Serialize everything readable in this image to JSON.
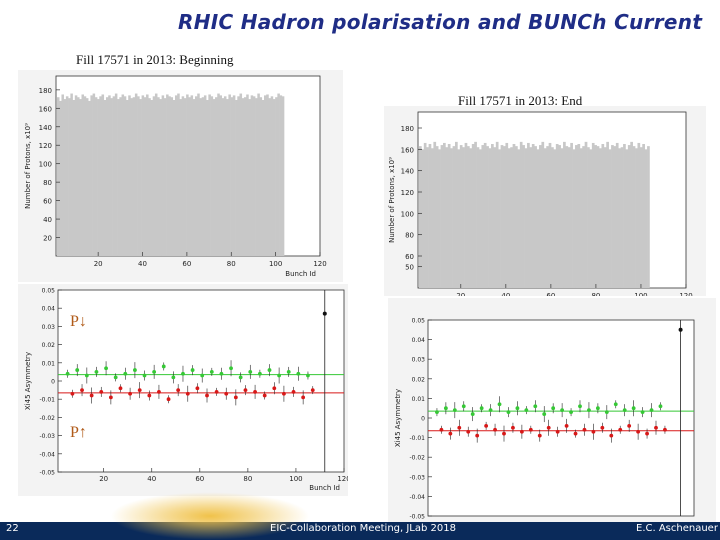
{
  "slide": {
    "title": "RHIC Hadron polarisation and BUNCh Current",
    "page_number": "22",
    "footer_center": "EIC-Collaboration Meeting, JLab 2018",
    "footer_right": "E.C. Aschenauer"
  },
  "captions": {
    "top_left": "Fill 17571 in 2013: Beginning",
    "top_right": "Fill 17571 in 2013: End"
  },
  "labels": {
    "p_down": "P↓",
    "p_up": "P↑"
  },
  "colors": {
    "title": "#1f2d86",
    "hist_fill": "#c8c8c8",
    "green_series": "#35c835",
    "red_series": "#d81818",
    "footer_bg": "#0a2a5a"
  },
  "chart_data": [
    {
      "type": "bar",
      "ylabel": "Number of Protons, x10⁹",
      "xlabel": "Bunch Id",
      "xticks": [
        "20",
        "40",
        "60",
        "80",
        "100",
        "120"
      ],
      "yticks": [
        "20",
        "40",
        "60",
        "80",
        "100",
        "120",
        "140",
        "160",
        "180"
      ],
      "xlim": [
        1,
        120
      ],
      "ylim": [
        0,
        195
      ],
      "values": [
        172,
        168,
        175,
        170,
        173,
        171,
        176,
        169,
        174,
        172,
        170,
        175,
        173,
        171,
        168,
        174,
        176,
        172,
        170,
        173,
        175,
        169,
        172,
        174,
        171,
        173,
        176,
        170,
        172,
        175,
        173,
        169,
        174,
        171,
        172,
        176,
        173,
        170,
        174,
        172,
        175,
        171,
        169,
        173,
        176,
        172,
        170,
        174,
        171,
        175,
        173,
        172,
        169,
        174,
        176,
        170,
        173,
        171,
        175,
        172,
        174,
        170,
        173,
        176,
        171,
        172,
        174,
        169,
        175,
        173,
        170,
        172,
        176,
        174,
        171,
        173,
        170,
        175,
        172,
        174,
        169,
        173,
        176,
        171,
        172,
        175,
        170,
        174,
        173,
        171,
        176,
        172,
        169,
        174,
        175,
        171,
        173,
        170,
        172,
        176,
        174,
        173
      ]
    },
    {
      "type": "bar",
      "ylabel": "Number of Protons, x10⁹",
      "xlabel": "Bunch Id",
      "xticks": [
        "20",
        "40",
        "60",
        "80",
        "100",
        "120"
      ],
      "yticks": [
        "50",
        "60",
        "80",
        "100",
        "120",
        "140",
        "160",
        "180"
      ],
      "xlim": [
        1,
        120
      ],
      "ylim": [
        30,
        195
      ],
      "values": [
        163,
        160,
        166,
        162,
        165,
        161,
        167,
        163,
        160,
        164,
        166,
        162,
        165,
        161,
        163,
        167,
        160,
        164,
        162,
        166,
        163,
        161,
        165,
        167,
        162,
        160,
        164,
        166,
        163,
        161,
        165,
        162,
        167,
        160,
        164,
        163,
        166,
        161,
        162,
        165,
        163,
        160,
        167,
        164,
        161,
        166,
        162,
        165,
        163,
        160,
        164,
        167,
        161,
        163,
        166,
        162,
        160,
        165,
        164,
        161,
        167,
        163,
        162,
        166,
        160,
        164,
        165,
        161,
        163,
        167,
        162,
        160,
        166,
        164,
        163,
        161,
        165,
        162,
        167,
        160,
        164,
        163,
        166,
        161,
        162,
        165,
        160,
        164,
        167,
        163,
        161,
        166,
        162,
        165,
        160,
        163
      ]
    },
    {
      "type": "scatter",
      "ylabel": "Xi45 Asymmetry",
      "xlabel": "Bunch Id",
      "xticks": [
        "20",
        "40",
        "60",
        "80",
        "100",
        "120"
      ],
      "yticks": [
        "-0.05",
        "-0.04",
        "-0.03",
        "-0.02",
        "-0.01",
        "0",
        "0.01",
        "0.02",
        "0.03",
        "0.04",
        "0.05"
      ],
      "xlim": [
        1,
        120
      ],
      "ylim": [
        -0.05,
        0.05
      ],
      "fit_lines": [
        0.0035,
        -0.0065
      ],
      "series": [
        {
          "x": [
            5,
            9,
            13,
            17,
            21,
            25,
            29,
            33,
            37,
            41,
            45,
            49,
            53,
            57,
            61,
            65,
            69,
            73,
            77,
            81,
            85,
            89,
            93,
            97,
            101,
            105
          ],
          "y": [
            0.004,
            0.006,
            0.003,
            0.005,
            0.007,
            0.002,
            0.004,
            0.006,
            0.003,
            0.005,
            0.008,
            0.002,
            0.004,
            0.006,
            0.003,
            0.005,
            0.004,
            0.007,
            0.002,
            0.005,
            0.004,
            0.006,
            0.003,
            0.005,
            0.004,
            0.003
          ]
        },
        {
          "x": [
            7,
            11,
            15,
            19,
            23,
            27,
            31,
            35,
            39,
            43,
            47,
            51,
            55,
            59,
            63,
            67,
            71,
            75,
            79,
            83,
            87,
            91,
            95,
            99,
            103,
            107
          ],
          "y": [
            -0.007,
            -0.005,
            -0.008,
            -0.006,
            -0.009,
            -0.004,
            -0.007,
            -0.005,
            -0.008,
            -0.006,
            -0.01,
            -0.005,
            -0.007,
            -0.004,
            -0.008,
            -0.006,
            -0.007,
            -0.009,
            -0.005,
            -0.006,
            -0.008,
            -0.004,
            -0.007,
            -0.006,
            -0.009,
            -0.005
          ]
        }
      ],
      "outlier": {
        "x": 112,
        "y": 0.037
      }
    },
    {
      "type": "scatter",
      "ylabel": "Xi45 Asymmetry",
      "xlabel": "Bunch Id",
      "yticks": [
        "-0.05",
        "-0.04",
        "-0.03",
        "-0.02",
        "-0.01",
        "0",
        "0.01",
        "0.02",
        "0.03",
        "0.04",
        "0.05"
      ],
      "xlim": [
        1,
        120
      ],
      "ylim": [
        -0.05,
        0.05
      ],
      "fit_lines": [
        0.0035,
        -0.0065
      ],
      "series": [
        {
          "x": [
            5,
            9,
            13,
            17,
            21,
            25,
            29,
            33,
            37,
            41,
            45,
            49,
            53,
            57,
            61,
            65,
            69,
            73,
            77,
            81,
            85,
            89,
            93,
            97,
            101,
            105
          ],
          "y": [
            0.003,
            0.005,
            0.004,
            0.006,
            0.002,
            0.005,
            0.004,
            0.007,
            0.003,
            0.005,
            0.004,
            0.006,
            0.002,
            0.005,
            0.004,
            0.003,
            0.006,
            0.004,
            0.005,
            0.003,
            0.007,
            0.004,
            0.005,
            0.003,
            0.004,
            0.006
          ]
        },
        {
          "x": [
            7,
            11,
            15,
            19,
            23,
            27,
            31,
            35,
            39,
            43,
            47,
            51,
            55,
            59,
            63,
            67,
            71,
            75,
            79,
            83,
            87,
            91,
            95,
            99,
            103,
            107
          ],
          "y": [
            -0.006,
            -0.008,
            -0.005,
            -0.007,
            -0.009,
            -0.004,
            -0.006,
            -0.008,
            -0.005,
            -0.007,
            -0.006,
            -0.009,
            -0.005,
            -0.007,
            -0.004,
            -0.008,
            -0.006,
            -0.007,
            -0.005,
            -0.009,
            -0.006,
            -0.004,
            -0.007,
            -0.008,
            -0.005,
            -0.006
          ]
        }
      ],
      "outlier": {
        "x": 114,
        "y": 0.045
      }
    }
  ]
}
